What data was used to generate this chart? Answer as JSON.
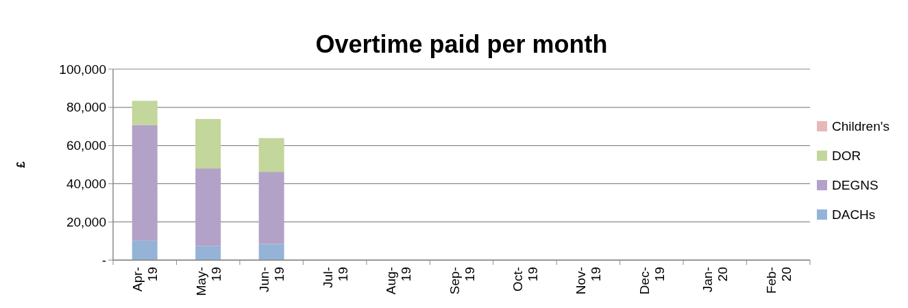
{
  "chart_data": {
    "type": "bar",
    "title": "Overtime paid per month",
    "ylabel": "£",
    "stacked": true,
    "categories": [
      "Apr-19",
      "May-19",
      "Jun-19",
      "Jul-19",
      "Aug-19",
      "Sep-19",
      "Oct-19",
      "Nov-19",
      "Dec-19",
      "Jan-20",
      "Feb-20"
    ],
    "series": [
      {
        "name": "DACHs",
        "color": "#95b3d7",
        "values": [
          10100,
          7400,
          8400,
          null,
          null,
          null,
          null,
          null,
          null,
          null,
          null
        ]
      },
      {
        "name": "DEGNS",
        "color": "#b3a2c7",
        "values": [
          60600,
          40600,
          37800,
          null,
          null,
          null,
          null,
          null,
          null,
          null,
          null
        ]
      },
      {
        "name": "DOR",
        "color": "#c3d69b",
        "values": [
          12700,
          25900,
          17700,
          null,
          null,
          null,
          null,
          null,
          null,
          null,
          null
        ]
      },
      {
        "name": "Children's",
        "color": "#e6b9b8",
        "values": [
          null,
          null,
          null,
          null,
          null,
          null,
          null,
          null,
          null,
          null,
          null
        ]
      }
    ],
    "ylim": [
      0,
      100000
    ],
    "yticks": [
      {
        "value": 0,
        "label": "-"
      },
      {
        "value": 20000,
        "label": "20,000"
      },
      {
        "value": 40000,
        "label": "40,000"
      },
      {
        "value": 60000,
        "label": "60,000"
      },
      {
        "value": 80000,
        "label": "80,000"
      },
      {
        "value": 100000,
        "label": "100,000"
      }
    ],
    "grid": "y",
    "legend": "right"
  }
}
